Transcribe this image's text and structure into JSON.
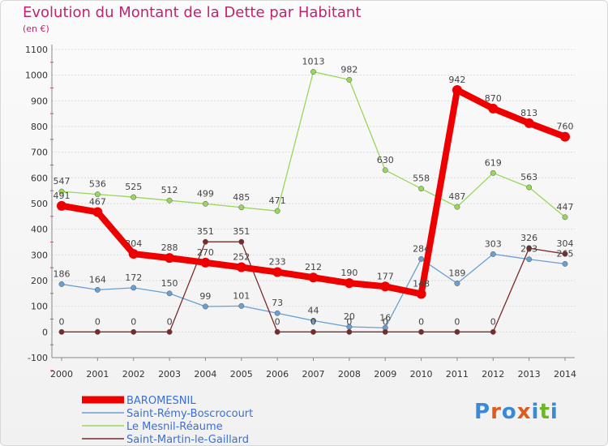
{
  "title": "Evolution du Montant de la Dette par Habitant",
  "unit": "(en €)",
  "logo": {
    "text": "Proxiti",
    "colors": [
      "#3a8ad6",
      "#e05a1e",
      "#3a8ad6",
      "#e05a1e",
      "#3a8ad6",
      "#6fb52c",
      "#3a8ad6"
    ]
  },
  "chart_data": {
    "type": "line",
    "title": "Evolution du Montant de la Dette par Habitant",
    "ylabel": "(en €)",
    "xlabel": "",
    "ylim": [
      -100,
      1100
    ],
    "yticks": [
      -100,
      0,
      100,
      200,
      300,
      400,
      500,
      600,
      700,
      800,
      900,
      1000,
      1100
    ],
    "x": [
      "2000",
      "2001",
      "2002",
      "2003",
      "2004",
      "2005",
      "2006",
      "2007",
      "2008",
      "2009",
      "2010",
      "2011",
      "2012",
      "2013",
      "2014"
    ],
    "grid": "horizontal",
    "legend": "bottom-left",
    "series": [
      {
        "name": "BAROMESNIL",
        "color": "#ee0000",
        "values": [
          491,
          467,
          304,
          288,
          270,
          252,
          233,
          212,
          190,
          177,
          148,
          942,
          870,
          813,
          760
        ]
      },
      {
        "name": "Saint-Rémy-Boscrocourt",
        "color": "#6a9fd2",
        "values": [
          186,
          164,
          172,
          150,
          99,
          101,
          73,
          44,
          20,
          16,
          284,
          189,
          303,
          283,
          265
        ]
      },
      {
        "name": "Le Mesnil-Réaume",
        "color": "#99d65a",
        "values": [
          547,
          536,
          525,
          512,
          499,
          485,
          471,
          1013,
          982,
          630,
          558,
          487,
          619,
          563,
          447
        ]
      },
      {
        "name": "Saint-Martin-le-Gaillard",
        "color": "#7b2a2a",
        "values": [
          0,
          0,
          0,
          0,
          351,
          351,
          0,
          0,
          0,
          0,
          0,
          0,
          0,
          326,
          304
        ]
      }
    ]
  }
}
